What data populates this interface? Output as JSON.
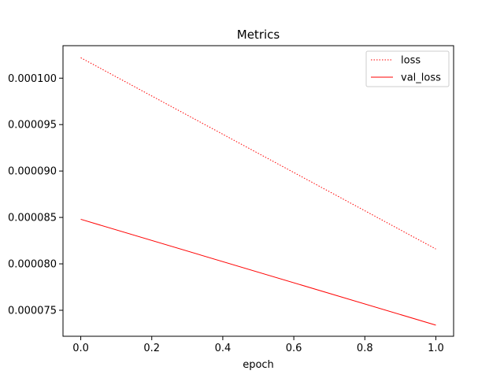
{
  "chart_data": {
    "type": "line",
    "title": "Metrics",
    "xlabel": "epoch",
    "ylabel": "",
    "xlim": [
      -0.05,
      1.05
    ],
    "ylim": [
      7.22e-05,
      0.0001035
    ],
    "x_ticks": [
      0.0,
      0.2,
      0.4,
      0.6,
      0.8,
      1.0
    ],
    "x_tick_labels": [
      "0.0",
      "0.2",
      "0.4",
      "0.6",
      "0.8",
      "1.0"
    ],
    "y_ticks": [
      7.5e-05,
      8e-05,
      8.5e-05,
      9e-05,
      9.5e-05,
      0.0001
    ],
    "y_tick_labels": [
      "0.000075",
      "0.000080",
      "0.000085",
      "0.000090",
      "0.000095",
      "0.000100"
    ],
    "grid": false,
    "legend_position": "top-right",
    "series": [
      {
        "name": "loss",
        "x": [
          0.0,
          1.0
        ],
        "values": [
          0.0001022,
          8.16e-05
        ],
        "color": "#ff0000",
        "line_style": "dotted"
      },
      {
        "name": "val_loss",
        "x": [
          0.0,
          1.0
        ],
        "values": [
          8.48e-05,
          7.34e-05
        ],
        "color": "#ff0000",
        "line_style": "solid"
      }
    ]
  }
}
